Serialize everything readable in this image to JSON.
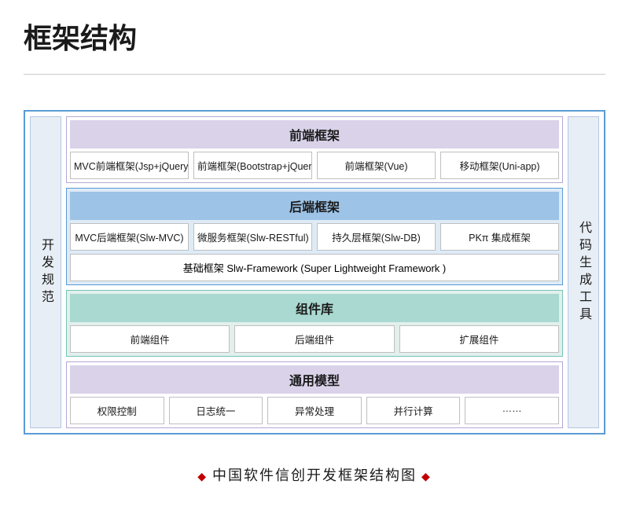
{
  "title": "框架结构",
  "diagram": {
    "outer_border_color": "#5b9bd5",
    "left_label": "开发规范",
    "right_label": "代码生成工具",
    "side_bg": "#e8eef5",
    "side_border": "#b4c7e7",
    "sections": [
      {
        "name": "frontend",
        "header": "前端框架",
        "header_bg": "#d9d2e9",
        "body_bg": "#ffffff",
        "border": "#b4a7d6",
        "rows": [
          [
            "MVC前端框架(Jsp+jQuery)",
            "前端框架(Bootstrap+jQuery)",
            "前端框架(Vue)",
            "移动框架(Uni-app)"
          ]
        ]
      },
      {
        "name": "backend",
        "header": "后端框架",
        "header_bg": "#9dc3e6",
        "body_bg": "#deebf7",
        "border": "#5b9bd5",
        "rows": [
          [
            "MVC后端框架(Slw-MVC)",
            "微服务框架(Slw-RESTful)",
            "持久层框架(Slw-DB)",
            "PKπ 集成框架"
          ],
          [
            "基础框架 Slw-Framework (Super Lightweight Framework )"
          ]
        ]
      },
      {
        "name": "components",
        "header": "组件库",
        "header_bg": "#a9d9d0",
        "body_bg": "#e2f0ed",
        "border": "#76c4b5",
        "rows": [
          [
            "前端组件",
            "后端组件",
            "扩展组件"
          ]
        ]
      },
      {
        "name": "common",
        "header": "通用模型",
        "header_bg": "#d9d2e9",
        "body_bg": "#ffffff",
        "border": "#b4a7d6",
        "rows": [
          [
            "权限控制",
            "日志统一",
            "异常处理",
            "并行计算",
            "……"
          ]
        ]
      }
    ]
  },
  "caption": "中国软件信创开发框架结构图"
}
